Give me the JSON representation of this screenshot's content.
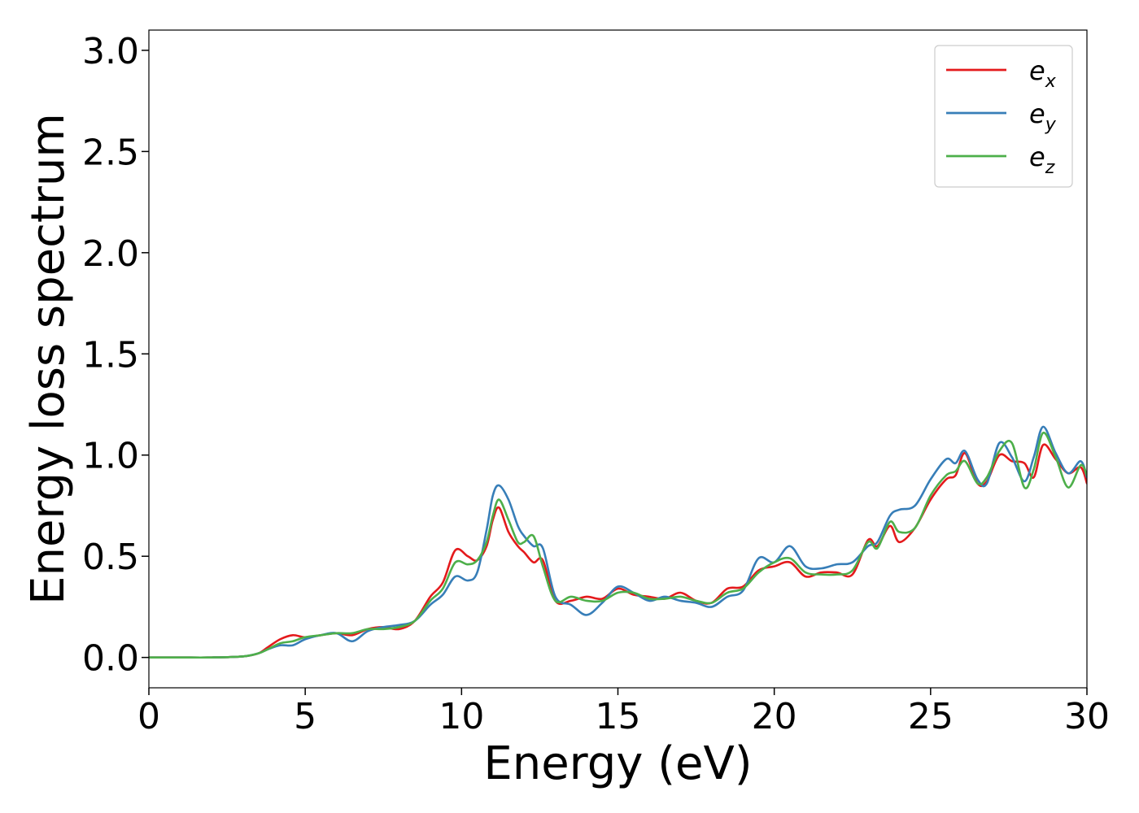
{
  "chart_data": {
    "type": "line",
    "title": "",
    "xlabel": "Energy (eV)",
    "ylabel": "Energy loss spectrum",
    "xlim": [
      0,
      30
    ],
    "ylim": [
      -0.15,
      3.1
    ],
    "xticks": [
      0,
      5,
      10,
      15,
      20,
      25,
      30
    ],
    "yticks": [
      0.0,
      0.5,
      1.0,
      1.5,
      2.0,
      2.5,
      3.0
    ],
    "xtick_labels": [
      "0",
      "5",
      "10",
      "15",
      "20",
      "25",
      "30"
    ],
    "ytick_labels": [
      "0.0",
      "0.5",
      "1.0",
      "1.5",
      "2.0",
      "2.5",
      "3.0"
    ],
    "grid": false,
    "legend_position": "top-right",
    "series": [
      {
        "name": "e_x",
        "base": "e",
        "sub": "x",
        "color": "#e41a1c",
        "points": [
          [
            0,
            0
          ],
          [
            1,
            0
          ],
          [
            2,
            0
          ],
          [
            3,
            0.005
          ],
          [
            3.5,
            0.02
          ],
          [
            3.8,
            0.05
          ],
          [
            4.2,
            0.09
          ],
          [
            4.6,
            0.11
          ],
          [
            5,
            0.1
          ],
          [
            5.5,
            0.11
          ],
          [
            6,
            0.12
          ],
          [
            6.5,
            0.11
          ],
          [
            7,
            0.14
          ],
          [
            7.5,
            0.15
          ],
          [
            8,
            0.14
          ],
          [
            8.5,
            0.18
          ],
          [
            9,
            0.3
          ],
          [
            9.4,
            0.37
          ],
          [
            9.8,
            0.53
          ],
          [
            10.2,
            0.5
          ],
          [
            10.5,
            0.48
          ],
          [
            10.8,
            0.55
          ],
          [
            11,
            0.68
          ],
          [
            11.2,
            0.74
          ],
          [
            11.5,
            0.62
          ],
          [
            11.8,
            0.55
          ],
          [
            12,
            0.52
          ],
          [
            12.3,
            0.47
          ],
          [
            12.6,
            0.48
          ],
          [
            13,
            0.28
          ],
          [
            13.5,
            0.28
          ],
          [
            14,
            0.3
          ],
          [
            14.5,
            0.29
          ],
          [
            15,
            0.34
          ],
          [
            15.5,
            0.31
          ],
          [
            16,
            0.3
          ],
          [
            16.5,
            0.29
          ],
          [
            17,
            0.32
          ],
          [
            17.5,
            0.28
          ],
          [
            18,
            0.27
          ],
          [
            18.5,
            0.34
          ],
          [
            19,
            0.35
          ],
          [
            19.5,
            0.43
          ],
          [
            20,
            0.45
          ],
          [
            20.5,
            0.47
          ],
          [
            21,
            0.4
          ],
          [
            21.5,
            0.42
          ],
          [
            22,
            0.42
          ],
          [
            22.5,
            0.41
          ],
          [
            23,
            0.58
          ],
          [
            23.3,
            0.55
          ],
          [
            23.7,
            0.65
          ],
          [
            24,
            0.57
          ],
          [
            24.5,
            0.64
          ],
          [
            25,
            0.78
          ],
          [
            25.5,
            0.88
          ],
          [
            25.8,
            0.9
          ],
          [
            26.1,
            1.01
          ],
          [
            26.5,
            0.86
          ],
          [
            26.8,
            0.87
          ],
          [
            27.2,
            1.0
          ],
          [
            27.6,
            0.97
          ],
          [
            28,
            0.96
          ],
          [
            28.3,
            0.89
          ],
          [
            28.6,
            1.05
          ],
          [
            29,
            0.98
          ],
          [
            29.4,
            0.91
          ],
          [
            29.8,
            0.94
          ],
          [
            30,
            0.86
          ]
        ]
      },
      {
        "name": "e_y",
        "base": "e",
        "sub": "y",
        "color": "#377eb8",
        "points": [
          [
            0,
            0
          ],
          [
            1,
            0
          ],
          [
            2,
            0
          ],
          [
            3,
            0.005
          ],
          [
            3.5,
            0.02
          ],
          [
            3.8,
            0.04
          ],
          [
            4.2,
            0.06
          ],
          [
            4.6,
            0.06
          ],
          [
            5,
            0.09
          ],
          [
            5.5,
            0.11
          ],
          [
            6,
            0.12
          ],
          [
            6.5,
            0.08
          ],
          [
            7,
            0.13
          ],
          [
            7.5,
            0.15
          ],
          [
            8,
            0.16
          ],
          [
            8.5,
            0.18
          ],
          [
            9,
            0.26
          ],
          [
            9.4,
            0.31
          ],
          [
            9.8,
            0.4
          ],
          [
            10.2,
            0.38
          ],
          [
            10.5,
            0.42
          ],
          [
            10.8,
            0.63
          ],
          [
            11,
            0.8
          ],
          [
            11.2,
            0.85
          ],
          [
            11.5,
            0.78
          ],
          [
            11.8,
            0.65
          ],
          [
            12,
            0.6
          ],
          [
            12.3,
            0.55
          ],
          [
            12.6,
            0.54
          ],
          [
            13,
            0.3
          ],
          [
            13.5,
            0.26
          ],
          [
            14,
            0.21
          ],
          [
            14.5,
            0.27
          ],
          [
            15,
            0.35
          ],
          [
            15.5,
            0.32
          ],
          [
            16,
            0.28
          ],
          [
            16.5,
            0.3
          ],
          [
            17,
            0.28
          ],
          [
            17.5,
            0.27
          ],
          [
            18,
            0.25
          ],
          [
            18.5,
            0.3
          ],
          [
            19,
            0.33
          ],
          [
            19.5,
            0.49
          ],
          [
            20,
            0.47
          ],
          [
            20.5,
            0.55
          ],
          [
            21,
            0.45
          ],
          [
            21.5,
            0.44
          ],
          [
            22,
            0.46
          ],
          [
            22.5,
            0.47
          ],
          [
            23,
            0.55
          ],
          [
            23.3,
            0.57
          ],
          [
            23.7,
            0.7
          ],
          [
            24,
            0.73
          ],
          [
            24.5,
            0.75
          ],
          [
            25,
            0.88
          ],
          [
            25.5,
            0.98
          ],
          [
            25.8,
            0.96
          ],
          [
            26.1,
            1.02
          ],
          [
            26.5,
            0.88
          ],
          [
            26.8,
            0.86
          ],
          [
            27.2,
            1.06
          ],
          [
            27.6,
            0.99
          ],
          [
            28,
            0.87
          ],
          [
            28.3,
            0.99
          ],
          [
            28.6,
            1.14
          ],
          [
            29,
            1.01
          ],
          [
            29.4,
            0.91
          ],
          [
            29.8,
            0.97
          ],
          [
            30,
            0.89
          ]
        ]
      },
      {
        "name": "e_z",
        "base": "e",
        "sub": "z",
        "color": "#4daf4a",
        "points": [
          [
            0,
            0
          ],
          [
            1,
            0
          ],
          [
            2,
            0
          ],
          [
            3,
            0.005
          ],
          [
            3.5,
            0.02
          ],
          [
            3.8,
            0.04
          ],
          [
            4.2,
            0.07
          ],
          [
            4.6,
            0.08
          ],
          [
            5,
            0.1
          ],
          [
            5.5,
            0.11
          ],
          [
            6,
            0.12
          ],
          [
            6.5,
            0.12
          ],
          [
            7,
            0.14
          ],
          [
            7.5,
            0.14
          ],
          [
            8,
            0.15
          ],
          [
            8.5,
            0.18
          ],
          [
            9,
            0.28
          ],
          [
            9.4,
            0.34
          ],
          [
            9.8,
            0.47
          ],
          [
            10.2,
            0.46
          ],
          [
            10.5,
            0.48
          ],
          [
            10.8,
            0.57
          ],
          [
            11,
            0.7
          ],
          [
            11.2,
            0.78
          ],
          [
            11.5,
            0.68
          ],
          [
            11.8,
            0.57
          ],
          [
            12,
            0.57
          ],
          [
            12.3,
            0.6
          ],
          [
            12.6,
            0.45
          ],
          [
            13,
            0.28
          ],
          [
            13.5,
            0.3
          ],
          [
            14,
            0.28
          ],
          [
            14.5,
            0.28
          ],
          [
            15,
            0.32
          ],
          [
            15.5,
            0.32
          ],
          [
            16,
            0.29
          ],
          [
            16.5,
            0.29
          ],
          [
            17,
            0.3
          ],
          [
            17.5,
            0.28
          ],
          [
            18,
            0.27
          ],
          [
            18.5,
            0.32
          ],
          [
            19,
            0.34
          ],
          [
            19.5,
            0.42
          ],
          [
            20,
            0.47
          ],
          [
            20.5,
            0.49
          ],
          [
            21,
            0.42
          ],
          [
            21.5,
            0.41
          ],
          [
            22,
            0.41
          ],
          [
            22.5,
            0.43
          ],
          [
            23,
            0.57
          ],
          [
            23.3,
            0.54
          ],
          [
            23.7,
            0.67
          ],
          [
            24,
            0.62
          ],
          [
            24.5,
            0.64
          ],
          [
            25,
            0.8
          ],
          [
            25.5,
            0.9
          ],
          [
            25.8,
            0.92
          ],
          [
            26.1,
            0.97
          ],
          [
            26.5,
            0.86
          ],
          [
            26.8,
            0.89
          ],
          [
            27.2,
            1.02
          ],
          [
            27.6,
            1.06
          ],
          [
            28,
            0.84
          ],
          [
            28.3,
            0.93
          ],
          [
            28.6,
            1.11
          ],
          [
            29,
            0.99
          ],
          [
            29.4,
            0.84
          ],
          [
            29.8,
            0.95
          ],
          [
            30,
            0.9
          ]
        ]
      }
    ]
  }
}
